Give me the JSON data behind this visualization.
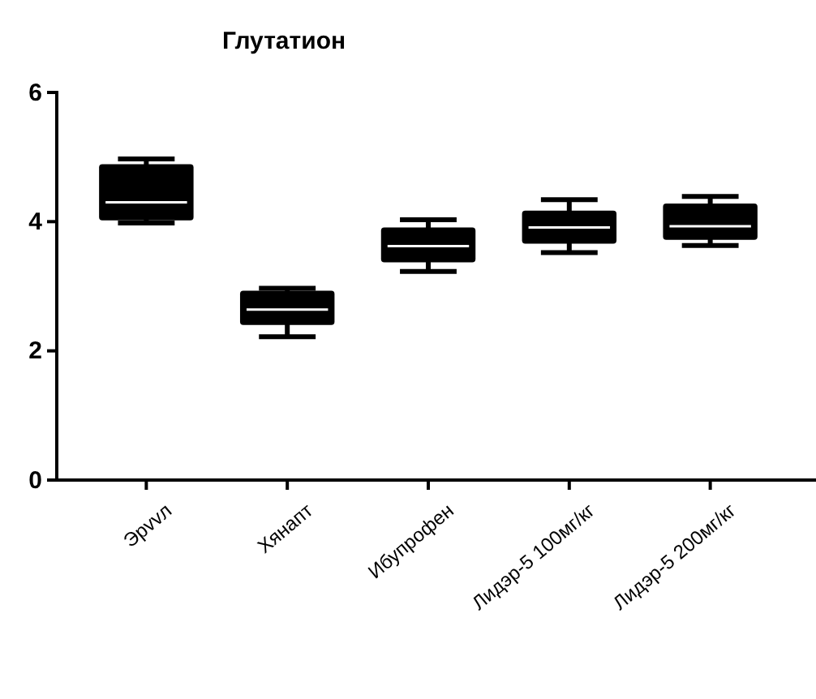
{
  "chart_data": {
    "type": "box",
    "title": "Глутатион",
    "categories": [
      "Эрvvл",
      "Хянапт",
      "Ибупрофен",
      "Лидэр-5 100мг/кг",
      "Лидэр-5 200мг/кг"
    ],
    "boxes": [
      {
        "low": 3.98,
        "q1": 4.02,
        "median": 4.3,
        "q3": 4.89,
        "high": 4.97
      },
      {
        "low": 2.22,
        "q1": 2.4,
        "median": 2.64,
        "q3": 2.93,
        "high": 2.97
      },
      {
        "low": 3.23,
        "q1": 3.37,
        "median": 3.62,
        "q3": 3.91,
        "high": 4.03
      },
      {
        "low": 3.52,
        "q1": 3.66,
        "median": 3.91,
        "q3": 4.17,
        "high": 4.34
      },
      {
        "low": 3.63,
        "q1": 3.72,
        "median": 3.93,
        "q3": 4.28,
        "high": 4.39
      }
    ],
    "color": "#000000",
    "ylim": [
      0,
      6
    ],
    "yticks": [
      0,
      2,
      4,
      6
    ]
  }
}
